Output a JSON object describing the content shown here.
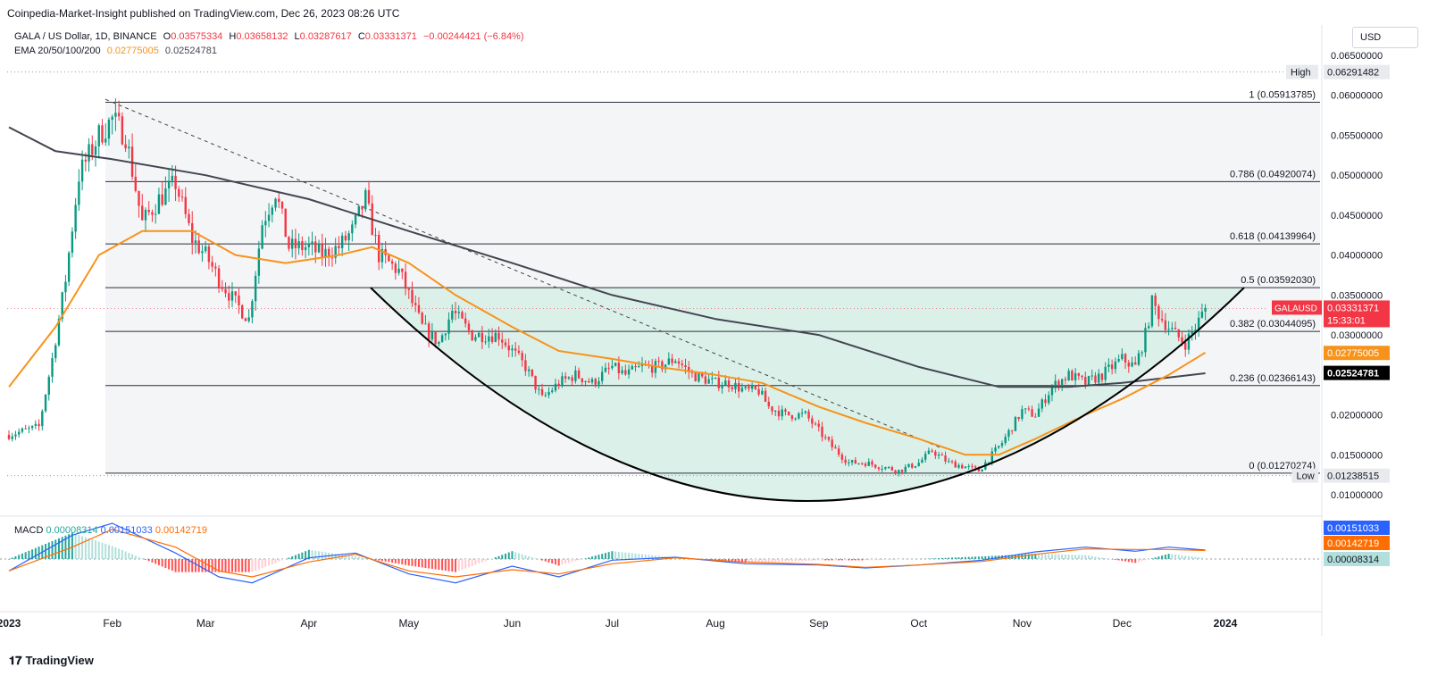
{
  "header": {
    "caption": "Coinpedia-Market-Insight published on TradingView.com, Dec 26, 2023 08:26 UTC"
  },
  "legend": {
    "symbol": "GALA / US Dollar, 1D, BINANCE",
    "open_label": "O",
    "open": "0.03575334",
    "high_label": "H",
    "high": "0.03658132",
    "low_label": "L",
    "low": "0.03287617",
    "close_label": "C",
    "close": "0.03331371",
    "change": "−0.00244421 (−6.84%)",
    "ema_label": "EMA 20/50/100/200",
    "ema_values": [
      "0.02775005",
      "0.02524781"
    ]
  },
  "currency": "USD",
  "price_axis_ticks": [
    "0.06500000",
    "0.06000000",
    "0.05500000",
    "0.05000000",
    "0.04500000",
    "0.04000000",
    "0.03500000",
    "0.03000000",
    "0.02000000",
    "0.01500000",
    "0.01000000"
  ],
  "badges": {
    "high_label": "High",
    "high_value": "0.06291482",
    "low_label": "Low",
    "low_value": "0.01238515",
    "symbol": "GALAUSD",
    "last_price": "0.03331371",
    "countdown": "15:33:01",
    "ema50_value": "0.02775005",
    "ema200_value": "0.02524781"
  },
  "fib_levels": [
    {
      "ratio": 1,
      "price": 0.05913785,
      "label": "1 (0.05913785)"
    },
    {
      "ratio": 0.786,
      "price": 0.04920074,
      "label": "0.786 (0.04920074)"
    },
    {
      "ratio": 0.618,
      "price": 0.04139964,
      "label": "0.618 (0.04139964)"
    },
    {
      "ratio": 0.5,
      "price": 0.0359203,
      "label": "0.5 (0.03592030)"
    },
    {
      "ratio": 0.382,
      "price": 0.03044095,
      "label": "0.382 (0.03044095)"
    },
    {
      "ratio": 0.236,
      "price": 0.02366143,
      "label": "0.236 (0.02366143)"
    },
    {
      "ratio": 0,
      "price": 0.01270274,
      "label": "0 (0.01270274)"
    }
  ],
  "macd": {
    "label": "MACD",
    "histogram": "0.00008314",
    "macd": "0.00151033",
    "signal": "0.00142719"
  },
  "time_axis": [
    "2023",
    "Feb",
    "Mar",
    "Apr",
    "May",
    "Jun",
    "Jul",
    "Aug",
    "Sep",
    "Oct",
    "Nov",
    "Dec",
    "2024"
  ],
  "brand": "TradingView",
  "colors": {
    "up": "#089981",
    "down": "#f23645",
    "ema50": "#f7931a",
    "ema200": "#434651",
    "macd_line": "#2962ff",
    "signal_line": "#ff6d00",
    "cup_fill": "#d7efe8",
    "last_price": "#f23645"
  },
  "chart_data": {
    "type": "candlestick",
    "title": "GALA / US Dollar, 1D, BINANCE",
    "ylim": [
      0.0085,
      0.068
    ],
    "x_range": [
      "2023-01-01",
      "2024-01-10"
    ],
    "close_series": {
      "dates": [
        "2023-01-01",
        "2023-01-10",
        "2023-01-14",
        "2023-01-18",
        "2023-01-22",
        "2023-01-28",
        "2023-02-01",
        "2023-02-05",
        "2023-02-10",
        "2023-02-15",
        "2023-02-20",
        "2023-02-25",
        "2023-03-01",
        "2023-03-05",
        "2023-03-10",
        "2023-03-14",
        "2023-03-18",
        "2023-03-22",
        "2023-03-26",
        "2023-04-01",
        "2023-04-05",
        "2023-04-10",
        "2023-04-14",
        "2023-04-18",
        "2023-04-22",
        "2023-04-28",
        "2023-05-05",
        "2023-05-10",
        "2023-05-14",
        "2023-05-20",
        "2023-05-28",
        "2023-06-05",
        "2023-06-10",
        "2023-06-15",
        "2023-06-20",
        "2023-06-25",
        "2023-07-01",
        "2023-07-05",
        "2023-07-10",
        "2023-07-15",
        "2023-07-20",
        "2023-07-25",
        "2023-08-01",
        "2023-08-05",
        "2023-08-10",
        "2023-08-14",
        "2023-08-17",
        "2023-08-22",
        "2023-08-28",
        "2023-09-05",
        "2023-09-10",
        "2023-09-15",
        "2023-09-20",
        "2023-09-25",
        "2023-10-01",
        "2023-10-05",
        "2023-10-10",
        "2023-10-15",
        "2023-10-19",
        "2023-10-22",
        "2023-10-26",
        "2023-11-01",
        "2023-11-05",
        "2023-11-10",
        "2023-11-15",
        "2023-11-20",
        "2023-11-25",
        "2023-12-01",
        "2023-12-05",
        "2023-12-08",
        "2023-12-10",
        "2023-12-13",
        "2023-12-17",
        "2023-12-20",
        "2023-12-23",
        "2023-12-26"
      ],
      "values": [
        0.0175,
        0.0185,
        0.027,
        0.037,
        0.05,
        0.055,
        0.057,
        0.055,
        0.044,
        0.047,
        0.049,
        0.042,
        0.04,
        0.037,
        0.034,
        0.032,
        0.044,
        0.048,
        0.041,
        0.041,
        0.04,
        0.041,
        0.043,
        0.047,
        0.04,
        0.038,
        0.031,
        0.029,
        0.033,
        0.03,
        0.03,
        0.026,
        0.022,
        0.024,
        0.025,
        0.024,
        0.026,
        0.025,
        0.026,
        0.026,
        0.027,
        0.025,
        0.024,
        0.024,
        0.023,
        0.023,
        0.021,
        0.02,
        0.02,
        0.016,
        0.014,
        0.014,
        0.0135,
        0.013,
        0.014,
        0.0155,
        0.014,
        0.0135,
        0.013,
        0.0145,
        0.0165,
        0.0205,
        0.02,
        0.0235,
        0.025,
        0.024,
        0.025,
        0.027,
        0.026,
        0.03,
        0.034,
        0.032,
        0.03,
        0.029,
        0.031,
        0.0333
      ]
    },
    "ema50": {
      "dates": [
        "2023-01-01",
        "2023-01-15",
        "2023-01-28",
        "2023-02-10",
        "2023-02-25",
        "2023-03-10",
        "2023-03-25",
        "2023-04-10",
        "2023-04-20",
        "2023-05-01",
        "2023-05-15",
        "2023-06-01",
        "2023-06-15",
        "2023-07-01",
        "2023-07-15",
        "2023-08-01",
        "2023-08-15",
        "2023-09-01",
        "2023-09-15",
        "2023-10-01",
        "2023-10-15",
        "2023-10-25",
        "2023-11-05",
        "2023-11-20",
        "2023-12-01",
        "2023-12-15",
        "2023-12-26"
      ],
      "values": [
        0.0235,
        0.031,
        0.04,
        0.043,
        0.043,
        0.04,
        0.039,
        0.04,
        0.041,
        0.039,
        0.035,
        0.031,
        0.028,
        0.027,
        0.026,
        0.025,
        0.024,
        0.021,
        0.019,
        0.017,
        0.015,
        0.015,
        0.017,
        0.02,
        0.022,
        0.025,
        0.0278
      ]
    },
    "ema200": {
      "dates": [
        "2023-01-01",
        "2023-01-15",
        "2023-02-01",
        "2023-03-01",
        "2023-04-01",
        "2023-05-01",
        "2023-06-01",
        "2023-07-01",
        "2023-08-01",
        "2023-09-01",
        "2023-10-01",
        "2023-10-25",
        "2023-11-15",
        "2023-12-01",
        "2023-12-26"
      ],
      "values": [
        0.056,
        0.053,
        0.052,
        0.05,
        0.047,
        0.043,
        0.039,
        0.035,
        0.032,
        0.03,
        0.026,
        0.0235,
        0.0235,
        0.024,
        0.0252
      ]
    },
    "macd_series": {
      "dates": [
        "2023-01-01",
        "2023-01-20",
        "2023-02-01",
        "2023-02-20",
        "2023-03-05",
        "2023-03-15",
        "2023-04-01",
        "2023-04-15",
        "2023-05-01",
        "2023-05-15",
        "2023-06-01",
        "2023-06-15",
        "2023-07-01",
        "2023-07-20",
        "2023-08-10",
        "2023-09-01",
        "2023-09-15",
        "2023-10-01",
        "2023-10-20",
        "2023-11-05",
        "2023-11-20",
        "2023-12-05",
        "2023-12-15",
        "2023-12-26"
      ],
      "macd": [
        -0.002,
        0.004,
        0.006,
        0.001,
        -0.003,
        -0.004,
        0.0002,
        0.001,
        -0.0025,
        -0.004,
        -0.0012,
        -0.003,
        -0.0002,
        0.0003,
        -0.0008,
        -0.001,
        -0.0015,
        -0.001,
        -0.0002,
        0.0012,
        0.002,
        0.0013,
        0.002,
        0.0015
      ],
      "signal": [
        -0.002,
        0.002,
        0.005,
        0.002,
        -0.002,
        -0.003,
        -0.0005,
        0.0008,
        -0.002,
        -0.003,
        -0.0018,
        -0.0025,
        -0.0008,
        0.0002,
        -0.0005,
        -0.0009,
        -0.0014,
        -0.001,
        -0.0004,
        0.0008,
        0.0017,
        0.0016,
        0.0016,
        0.00143
      ]
    }
  }
}
